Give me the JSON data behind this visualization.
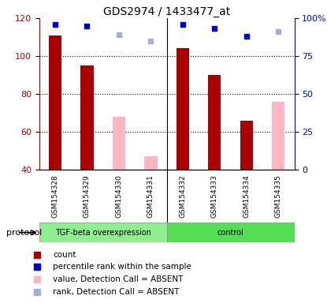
{
  "title": "GDS2974 / 1433477_at",
  "samples": [
    "GSM154328",
    "GSM154329",
    "GSM154330",
    "GSM154331",
    "GSM154332",
    "GSM154333",
    "GSM154334",
    "GSM154335"
  ],
  "group1_label": "TGF-beta overexpression",
  "group2_label": "control",
  "group1_color": "#90EE90",
  "group2_color": "#55DD55",
  "red_bars": [
    111,
    95,
    null,
    null,
    104,
    90,
    66,
    null
  ],
  "pink_bars": [
    null,
    null,
    68,
    47,
    null,
    null,
    null,
    76
  ],
  "blue_squares": [
    96,
    95,
    null,
    null,
    96,
    93,
    88,
    null
  ],
  "light_blue_squares": [
    null,
    null,
    89,
    85,
    null,
    null,
    null,
    91
  ],
  "ylim_left": [
    40,
    120
  ],
  "ylim_right": [
    0,
    100
  ],
  "yticks_left": [
    40,
    60,
    80,
    100,
    120
  ],
  "yticks_right": [
    0,
    25,
    50,
    75,
    100
  ],
  "yticklabels_right": [
    "0",
    "25",
    "50",
    "75",
    "100%"
  ],
  "red_color": "#AA0000",
  "pink_color": "#FFB6C1",
  "blue_color": "#0000CC",
  "light_blue_color": "#AAAADD",
  "protocol_label": "protocol",
  "sample_bg_color": "#C8C8C8",
  "legend_items": [
    {
      "label": "count",
      "color": "#AA0000"
    },
    {
      "label": "percentile rank within the sample",
      "color": "#0000CC"
    },
    {
      "label": "value, Detection Call = ABSENT",
      "color": "#FFB6C1"
    },
    {
      "label": "rank, Detection Call = ABSENT",
      "color": "#AAAADD"
    }
  ]
}
